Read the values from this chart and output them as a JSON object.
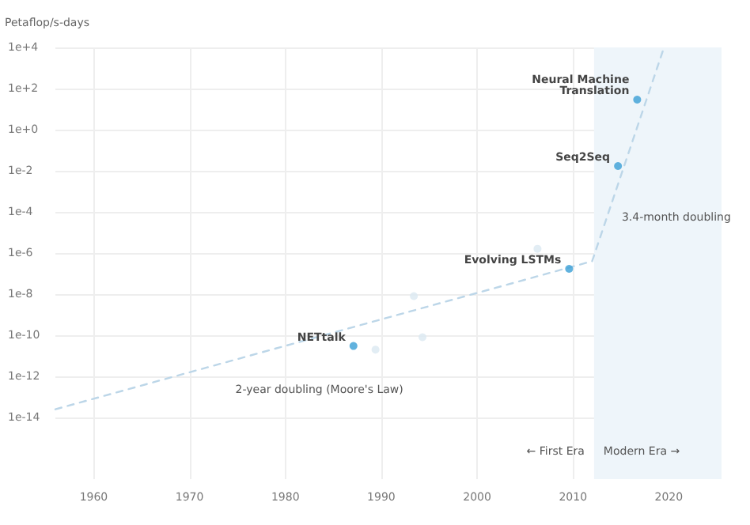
{
  "chart_data": {
    "type": "scatter",
    "ylabel": "Petaflop/s-days",
    "log": "y",
    "grid": true,
    "marker": "circle",
    "xlim": [
      1956,
      2025.5
    ],
    "xticks": [
      1960,
      1970,
      1980,
      1990,
      2000,
      2010,
      2020
    ],
    "ylim": [
      1e-17,
      10000
    ],
    "yticks": [
      {
        "value": 1e-14,
        "label": "1e-14"
      },
      {
        "value": 1e-12,
        "label": "1e-12"
      },
      {
        "value": 1e-10,
        "label": "1e-10"
      },
      {
        "value": 1e-08,
        "label": "1e-8"
      },
      {
        "value": 1e-06,
        "label": "1e-6"
      },
      {
        "value": 0.0001,
        "label": "1e-4"
      },
      {
        "value": 0.01,
        "label": "1e-2"
      },
      {
        "value": 1,
        "label": "1e+0"
      },
      {
        "value": 100,
        "label": "1e+2"
      },
      {
        "value": 10000,
        "label": "1e+4"
      }
    ],
    "bands": [
      {
        "axis": "x",
        "from": 2012.2,
        "to": 2025.5,
        "color": "#eef5fa",
        "label": "Modern Era →"
      }
    ],
    "series": [
      {
        "type": "line",
        "name": "2-year doubling (Moore's Law)",
        "line_style": "dashed",
        "marker": "none",
        "color": "#bcd6e8",
        "x": [
          1956,
          2012
        ],
        "values": [
          2.5e-14,
          4e-07
        ]
      },
      {
        "type": "line",
        "name": "3.4-month doubling",
        "line_style": "dashed",
        "marker": "none",
        "color": "#bcd6e8",
        "x": [
          2012,
          2019.5
        ],
        "values": [
          4e-07,
          10000
        ]
      },
      {
        "color": "#dbe8f1",
        "x": [
          1989.4,
          1993.4,
          1994.3,
          2006.3
        ],
        "values": [
          2e-11,
          8e-09,
          8e-11,
          1.6e-06
        ]
      },
      {
        "color": "#3a9fd6",
        "x": [
          1987.1,
          2009.6,
          2014.7,
          2016.7
        ],
        "values": [
          3e-11,
          1.7e-07,
          0.017,
          29
        ]
      }
    ],
    "annotations": [
      {
        "text": "NETtalk",
        "x": 1987.1,
        "y": 3e-11
      },
      {
        "text": "Evolving LSTMs",
        "x": 2009.6,
        "y": 1.7e-07
      },
      {
        "text": "Seq2Seq",
        "x": 2014.7,
        "y": 0.017
      },
      {
        "text": "Neural Machine\nTranslation",
        "x": 2016.7,
        "y": 29
      },
      "← First Era"
    ]
  }
}
